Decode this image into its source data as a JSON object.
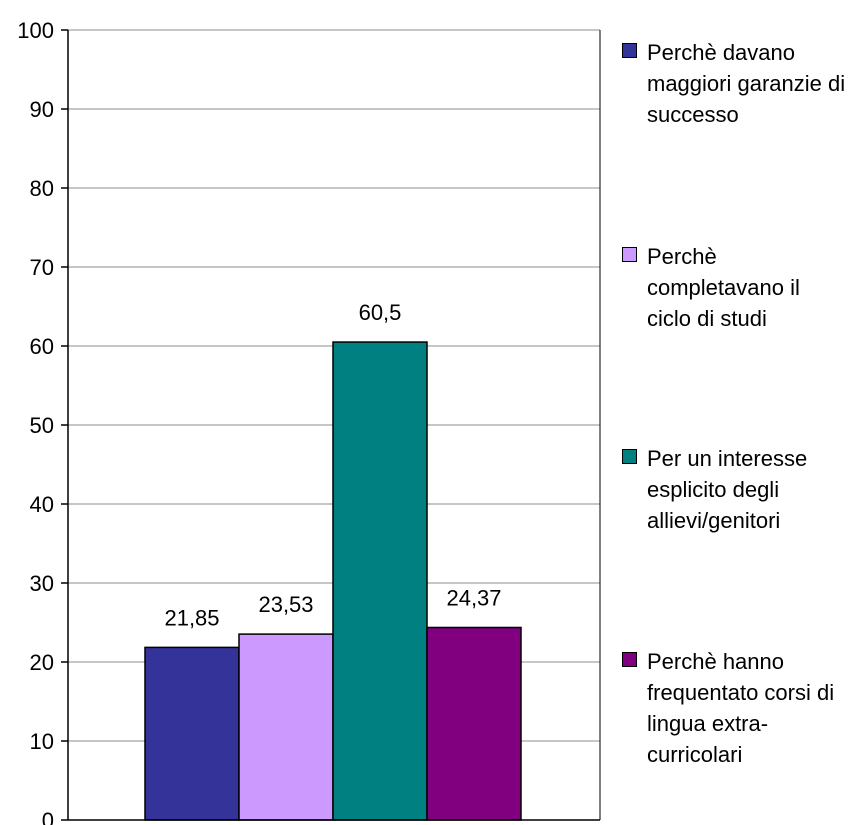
{
  "chart_data": {
    "type": "bar",
    "title": "",
    "xlabel": "",
    "ylabel": "",
    "ylim": [
      0,
      100
    ],
    "yticks": [
      0,
      10,
      20,
      30,
      40,
      50,
      60,
      70,
      80,
      90,
      100
    ],
    "grid": true,
    "legend_position": "right",
    "series": [
      {
        "name": "Perchè davano maggiori garanzie di successo",
        "value": 21.85,
        "label": "21,85",
        "color": "#333399"
      },
      {
        "name": "Perchè completavano il ciclo di studi",
        "value": 23.53,
        "label": "23,53",
        "color": "#cc99ff"
      },
      {
        "name": "Per un interesse esplicito degli allievi/genitori",
        "value": 60.5,
        "label": "60,5",
        "color": "#008080"
      },
      {
        "name": "Perchè hanno frequentato corsi di lingua extra-curricolari",
        "value": 24.37,
        "label": "24,37",
        "color": "#800080"
      }
    ]
  }
}
